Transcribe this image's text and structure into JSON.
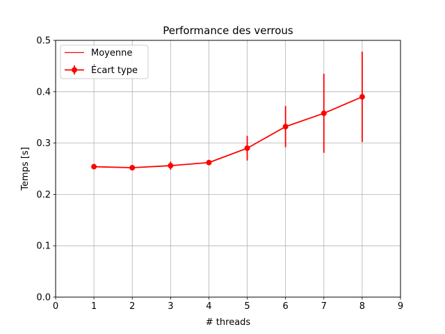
{
  "chart_data": {
    "type": "line",
    "title": "Performance des verrous",
    "xlabel": "# threads",
    "ylabel": "Temps [s]",
    "xlim": [
      0,
      9
    ],
    "ylim": [
      0,
      0.5
    ],
    "xticks": [
      0,
      1,
      2,
      3,
      4,
      5,
      6,
      7,
      8,
      9
    ],
    "yticks": [
      0.0,
      0.1,
      0.2,
      0.3,
      0.4,
      0.5
    ],
    "xtick_labels": [
      "0",
      "1",
      "2",
      "3",
      "4",
      "5",
      "6",
      "7",
      "8",
      "9"
    ],
    "ytick_labels": [
      "0.0",
      "0.1",
      "0.2",
      "0.3",
      "0.4",
      "0.5"
    ],
    "grid": true,
    "legend_position": "top-left",
    "series": [
      {
        "name": "Moyenne",
        "style": "line",
        "color": "#ff0000"
      },
      {
        "name": "Écart type",
        "style": "errorbar",
        "color": "#ff0000",
        "x": [
          1,
          2,
          3,
          4,
          5,
          6,
          7,
          8
        ],
        "y": [
          0.254,
          0.252,
          0.256,
          0.262,
          0.29,
          0.332,
          0.358,
          0.39
        ],
        "err": [
          0.003,
          0.002,
          0.008,
          0.002,
          0.024,
          0.04,
          0.077,
          0.088
        ]
      }
    ]
  }
}
